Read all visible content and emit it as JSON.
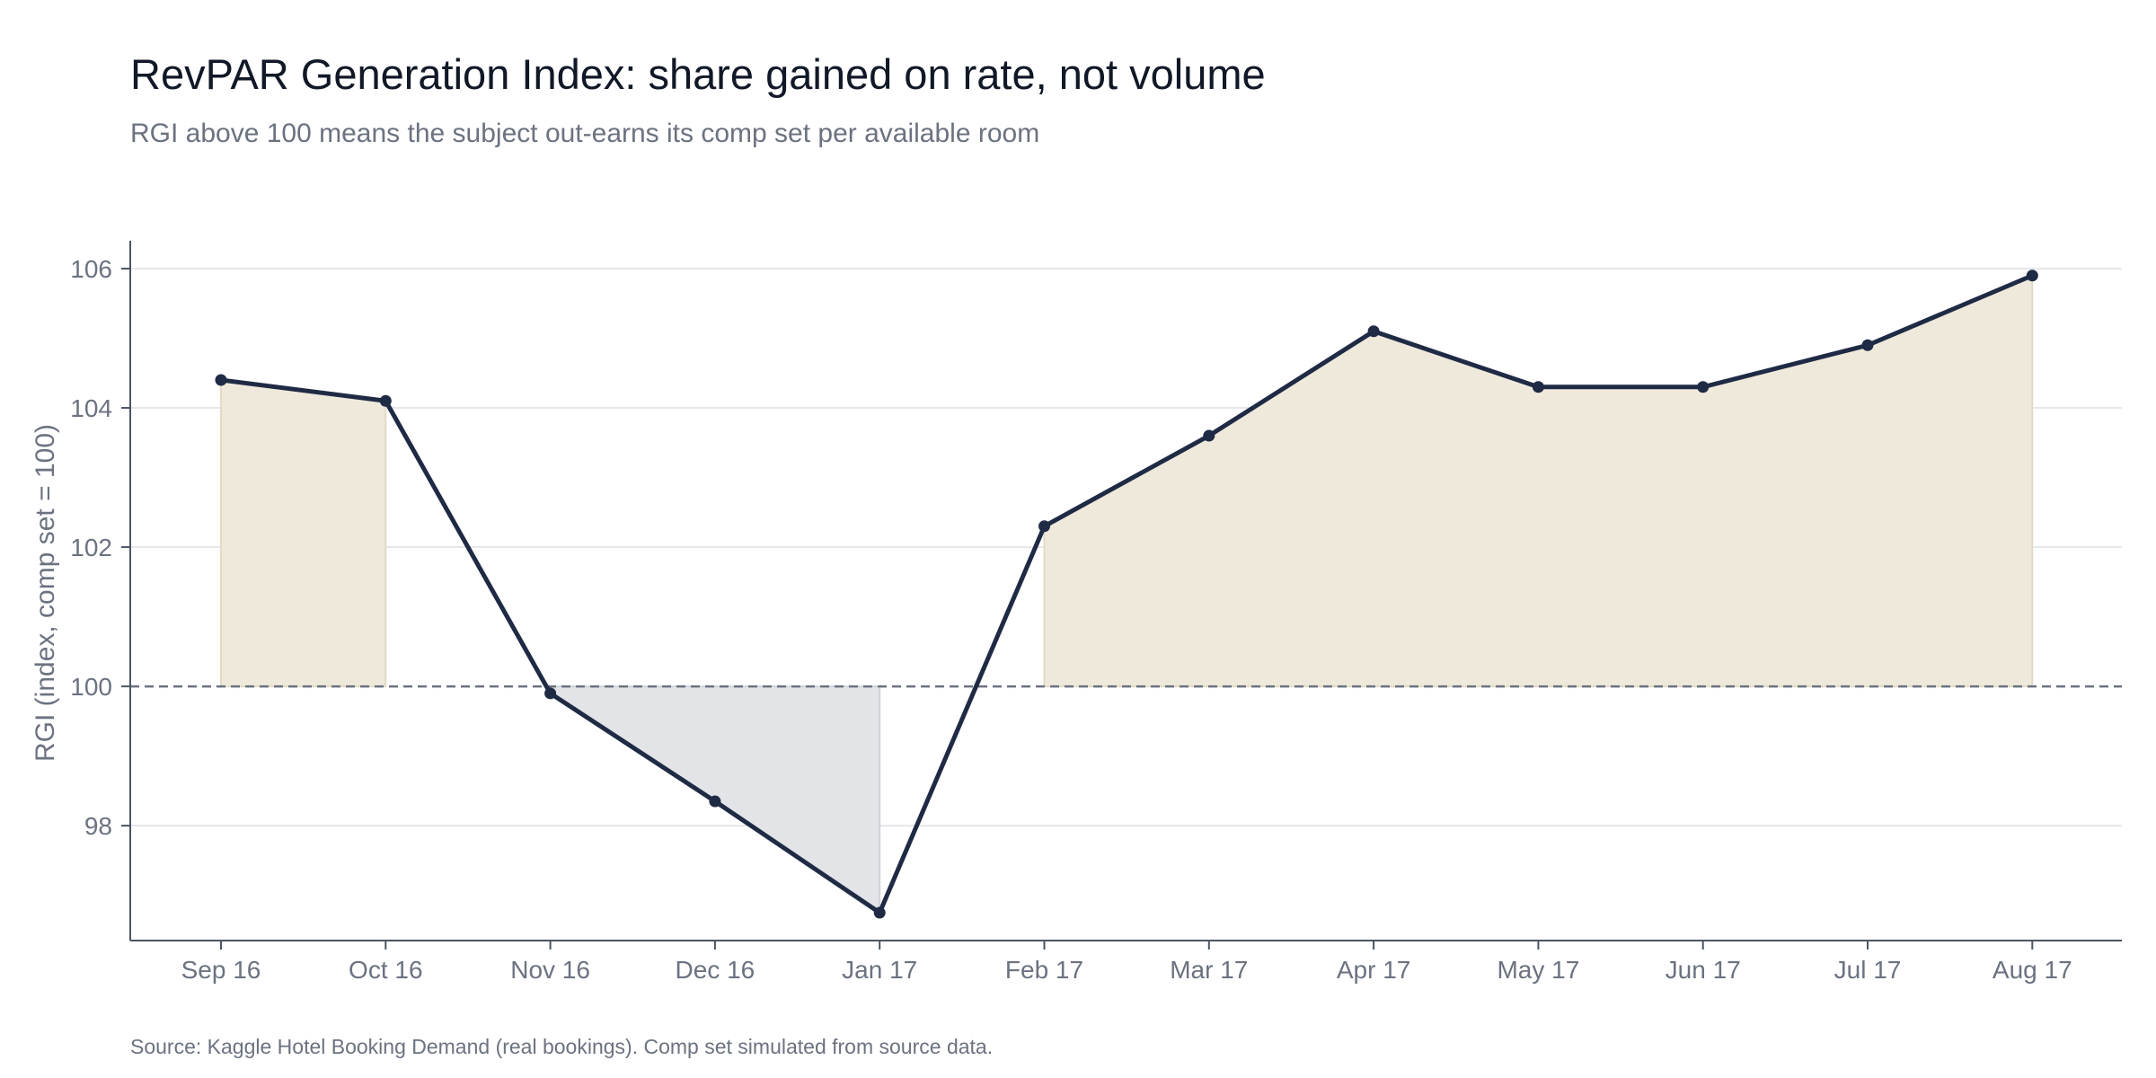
{
  "title": "RevPAR Generation Index: share gained on rate, not volume",
  "subtitle": "RGI above 100 means the subject out-earns its comp set per available room",
  "source": "Source: Kaggle Hotel Booking Demand (real bookings). Comp set simulated from source data.",
  "colors": {
    "line": "#1f2a44",
    "above_fill": "#efe9dc",
    "above_edge": "#e3dac6",
    "below_fill": "#e2e4e8",
    "below_edge": "#cfd3da",
    "grid": "#e5e7eb",
    "axis": "#4b5563",
    "reference": "#6b7280"
  },
  "chart_data": {
    "type": "line",
    "title": "",
    "xlabel": "",
    "ylabel": "RGI (index, comp set = 100)",
    "categories": [
      "Sep 16",
      "Oct 16",
      "Nov 16",
      "Dec 16",
      "Jan 17",
      "Feb 17",
      "Mar 17",
      "Apr 17",
      "May 17",
      "Jun 17",
      "Jul 17",
      "Aug 17"
    ],
    "series": [
      {
        "values": [
          104.4,
          104.1,
          99.9,
          98.35,
          96.75,
          102.3,
          103.6,
          105.1,
          104.3,
          104.3,
          104.9,
          105.9
        ]
      }
    ],
    "yticks": [
      98,
      100,
      102,
      104,
      106
    ],
    "ylim": [
      96.35,
      106.4
    ],
    "reference_line": 100,
    "grid": true,
    "legend": "none",
    "shading": "fill between series and 100 (warm above, grey below)"
  }
}
